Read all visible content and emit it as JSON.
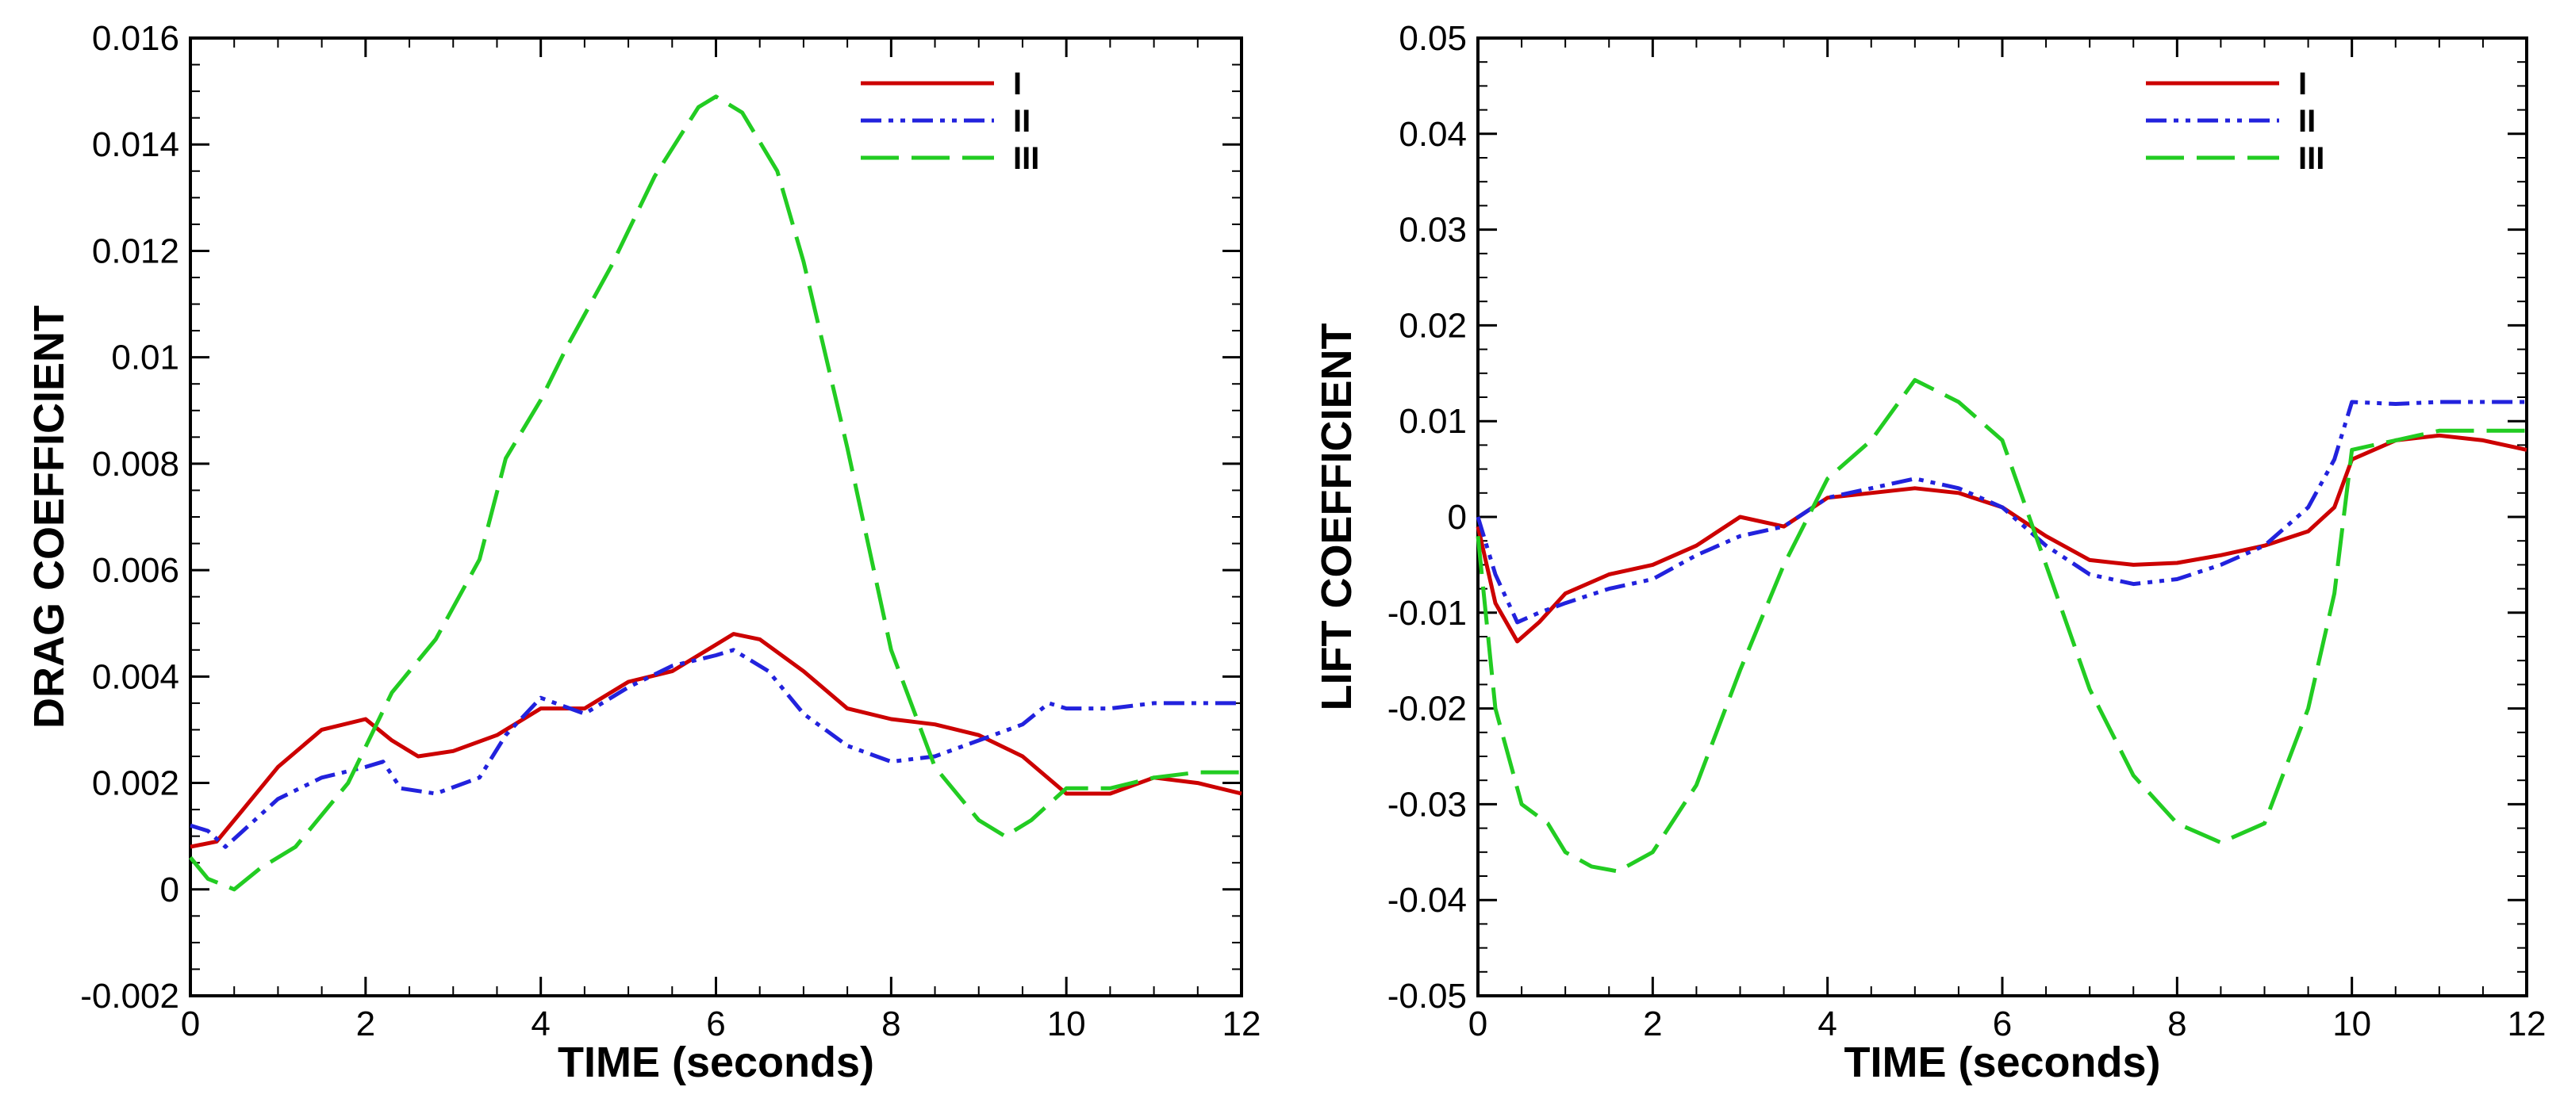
{
  "chart_data": [
    {
      "type": "line",
      "xlabel": "TIME (seconds)",
      "ylabel": "DRAG COEFFICIENT",
      "xlim": [
        0,
        12
      ],
      "ylim": [
        -0.002,
        0.016
      ],
      "xticks": [
        0,
        2,
        4,
        6,
        8,
        10,
        12
      ],
      "xtick_labels": [
        "0",
        "2",
        "4",
        "6",
        "8",
        "10",
        "12"
      ],
      "yticks": [
        -0.002,
        0,
        0.002,
        0.004,
        0.006,
        0.008,
        0.01,
        0.012,
        0.014,
        0.016
      ],
      "ytick_labels": [
        "-0.002",
        "0",
        "0.002",
        "0.004",
        "0.006",
        "0.008",
        "0.01",
        "0.012",
        "0.014",
        "0.016"
      ],
      "legend_position": "top-right",
      "series": [
        {
          "name": "I",
          "color": "#cc0000",
          "style": "solid",
          "x": [
            0,
            0.3,
            0.6,
            1,
            1.5,
            2,
            2.3,
            2.6,
            3,
            3.5,
            4,
            4.5,
            5,
            5.5,
            6,
            6.2,
            6.5,
            7,
            7.5,
            8,
            8.5,
            9,
            9.5,
            10,
            10.5,
            11,
            11.5,
            12
          ],
          "y": [
            0.0008,
            0.0009,
            0.0015,
            0.0023,
            0.003,
            0.0032,
            0.0028,
            0.0025,
            0.0026,
            0.0029,
            0.0034,
            0.0034,
            0.0039,
            0.0041,
            0.0046,
            0.0048,
            0.0047,
            0.0041,
            0.0034,
            0.0032,
            0.0031,
            0.0029,
            0.0025,
            0.0018,
            0.0018,
            0.0021,
            0.002,
            0.0018
          ]
        },
        {
          "name": "II",
          "color": "#2222dd",
          "style": "dash-dot-dot",
          "x": [
            0,
            0.2,
            0.4,
            0.6,
            1,
            1.5,
            2,
            2.2,
            2.4,
            2.8,
            3.3,
            3.6,
            4,
            4.5,
            5,
            5.5,
            6,
            6.2,
            6.6,
            7,
            7.5,
            8,
            8.5,
            9,
            9.5,
            9.8,
            10,
            10.5,
            11,
            11.5,
            12
          ],
          "y": [
            0.0012,
            0.0011,
            0.0008,
            0.0011,
            0.0017,
            0.0021,
            0.0023,
            0.0024,
            0.0019,
            0.0018,
            0.0021,
            0.0029,
            0.0036,
            0.0033,
            0.0038,
            0.0042,
            0.0044,
            0.0045,
            0.0041,
            0.0033,
            0.0027,
            0.0024,
            0.0025,
            0.0028,
            0.0031,
            0.0035,
            0.0034,
            0.0034,
            0.0035,
            0.0035,
            0.0035
          ]
        },
        {
          "name": "III",
          "color": "#22cc22",
          "style": "dashed",
          "x": [
            0,
            0.2,
            0.5,
            0.8,
            1.2,
            1.8,
            2.3,
            2.8,
            3.3,
            3.6,
            4,
            4.3,
            4.8,
            5.3,
            5.8,
            6,
            6.3,
            6.7,
            7,
            7.5,
            8,
            8.5,
            9,
            9.3,
            9.6,
            10,
            10.5,
            11,
            11.5,
            12
          ],
          "y": [
            0.0006,
            0.0002,
            0.0,
            0.0004,
            0.0008,
            0.002,
            0.0037,
            0.0047,
            0.0062,
            0.0081,
            0.0092,
            0.0102,
            0.0117,
            0.0134,
            0.0147,
            0.0149,
            0.0146,
            0.0135,
            0.0118,
            0.0083,
            0.0045,
            0.0023,
            0.0013,
            0.001,
            0.0013,
            0.0019,
            0.0019,
            0.0021,
            0.0022,
            0.0022
          ]
        }
      ]
    },
    {
      "type": "line",
      "xlabel": "TIME (seconds)",
      "ylabel": "LIFT COEFFICIENT",
      "xlim": [
        0,
        12
      ],
      "ylim": [
        -0.05,
        0.05
      ],
      "xticks": [
        0,
        2,
        4,
        6,
        8,
        10,
        12
      ],
      "xtick_labels": [
        "0",
        "2",
        "4",
        "6",
        "8",
        "10",
        "12"
      ],
      "yticks": [
        -0.05,
        -0.04,
        -0.03,
        -0.02,
        -0.01,
        0,
        0.01,
        0.02,
        0.03,
        0.04,
        0.05
      ],
      "ytick_labels": [
        "-0.05",
        "-0.04",
        "-0.03",
        "-0.02",
        "-0.01",
        "0",
        "0.01",
        "0.02",
        "0.03",
        "0.04",
        "0.05"
      ],
      "legend_position": "top-right",
      "series": [
        {
          "name": "I",
          "color": "#cc0000",
          "style": "solid",
          "x": [
            0,
            0.2,
            0.45,
            0.7,
            1,
            1.5,
            2,
            2.5,
            3,
            3.5,
            4,
            4.5,
            5,
            5.5,
            6,
            6.5,
            7,
            7.5,
            8,
            8.5,
            9,
            9.5,
            9.8,
            10,
            10.5,
            11,
            11.5,
            12
          ],
          "y": [
            -0.001,
            -0.009,
            -0.013,
            -0.011,
            -0.008,
            -0.006,
            -0.005,
            -0.003,
            0.0,
            -0.001,
            0.002,
            0.0025,
            0.003,
            0.0025,
            0.001,
            -0.002,
            -0.0045,
            -0.005,
            -0.0048,
            -0.004,
            -0.003,
            -0.0015,
            0.001,
            0.006,
            0.008,
            0.0085,
            0.008,
            0.007
          ]
        },
        {
          "name": "II",
          "color": "#2222dd",
          "style": "dash-dot-dot",
          "x": [
            0,
            0.2,
            0.45,
            0.7,
            1,
            1.5,
            2,
            2.5,
            3,
            3.5,
            4,
            4.5,
            5,
            5.5,
            6,
            6.5,
            7,
            7.5,
            8,
            8.5,
            9,
            9.5,
            9.8,
            10,
            10.5,
            11,
            11.5,
            12
          ],
          "y": [
            0.0,
            -0.006,
            -0.011,
            -0.01,
            -0.009,
            -0.0075,
            -0.0065,
            -0.004,
            -0.002,
            -0.001,
            0.002,
            0.003,
            0.004,
            0.003,
            0.001,
            -0.003,
            -0.006,
            -0.007,
            -0.0065,
            -0.005,
            -0.003,
            0.001,
            0.006,
            0.012,
            0.0118,
            0.012,
            0.012,
            0.012
          ]
        },
        {
          "name": "III",
          "color": "#22cc22",
          "style": "dashed",
          "x": [
            0,
            0.2,
            0.5,
            0.8,
            1,
            1.3,
            1.6,
            2,
            2.5,
            3,
            3.5,
            4,
            4.5,
            5,
            5.5,
            6,
            6.5,
            7,
            7.5,
            8,
            8.5,
            9,
            9.5,
            9.8,
            10,
            10.5,
            11,
            11.5,
            12
          ],
          "y": [
            -0.002,
            -0.02,
            -0.03,
            -0.032,
            -0.035,
            -0.0365,
            -0.037,
            -0.035,
            -0.028,
            -0.016,
            -0.005,
            0.004,
            0.008,
            0.0143,
            0.012,
            0.008,
            -0.005,
            -0.018,
            -0.027,
            -0.032,
            -0.034,
            -0.032,
            -0.02,
            -0.008,
            0.007,
            0.008,
            0.009,
            0.009,
            0.009
          ]
        }
      ]
    }
  ]
}
